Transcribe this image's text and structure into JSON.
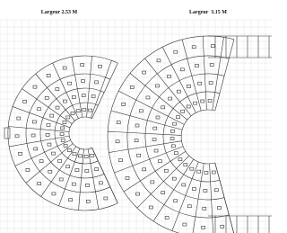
{
  "panels": [
    {
      "label": "Largeur 2.53 M"
    },
    {
      "label": "Largeur  3.15 M"
    }
  ]
}
